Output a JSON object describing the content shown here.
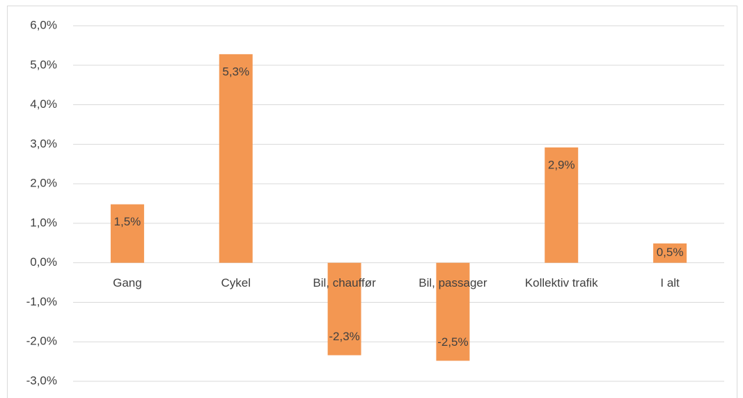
{
  "chart_data": {
    "type": "bar",
    "categories": [
      "Gang",
      "Cykel",
      "Bil, chauffør",
      "Bil, passager",
      "Kollektiv trafik",
      "I alt"
    ],
    "values": [
      1.48,
      5.28,
      -2.34,
      -2.48,
      2.92,
      0.49
    ],
    "value_labels": [
      "1,5%",
      "5,3%",
      "-2,3%",
      "-2,5%",
      "2,9%",
      "0,5%"
    ],
    "color": "#f39752",
    "ylim": [
      -3,
      6
    ],
    "yticks": [
      {
        "value": -3,
        "label": "-3,0%"
      },
      {
        "value": -2,
        "label": "-2,0%"
      },
      {
        "value": -1,
        "label": "-1,0%"
      },
      {
        "value": 0,
        "label": "0,0%"
      },
      {
        "value": 1,
        "label": "1,0%"
      },
      {
        "value": 2,
        "label": "2,0%"
      },
      {
        "value": 3,
        "label": "3,0%"
      },
      {
        "value": 4,
        "label": "4,0%"
      },
      {
        "value": 5,
        "label": "5,0%"
      },
      {
        "value": 6,
        "label": "6,0%"
      }
    ],
    "grid": true
  }
}
